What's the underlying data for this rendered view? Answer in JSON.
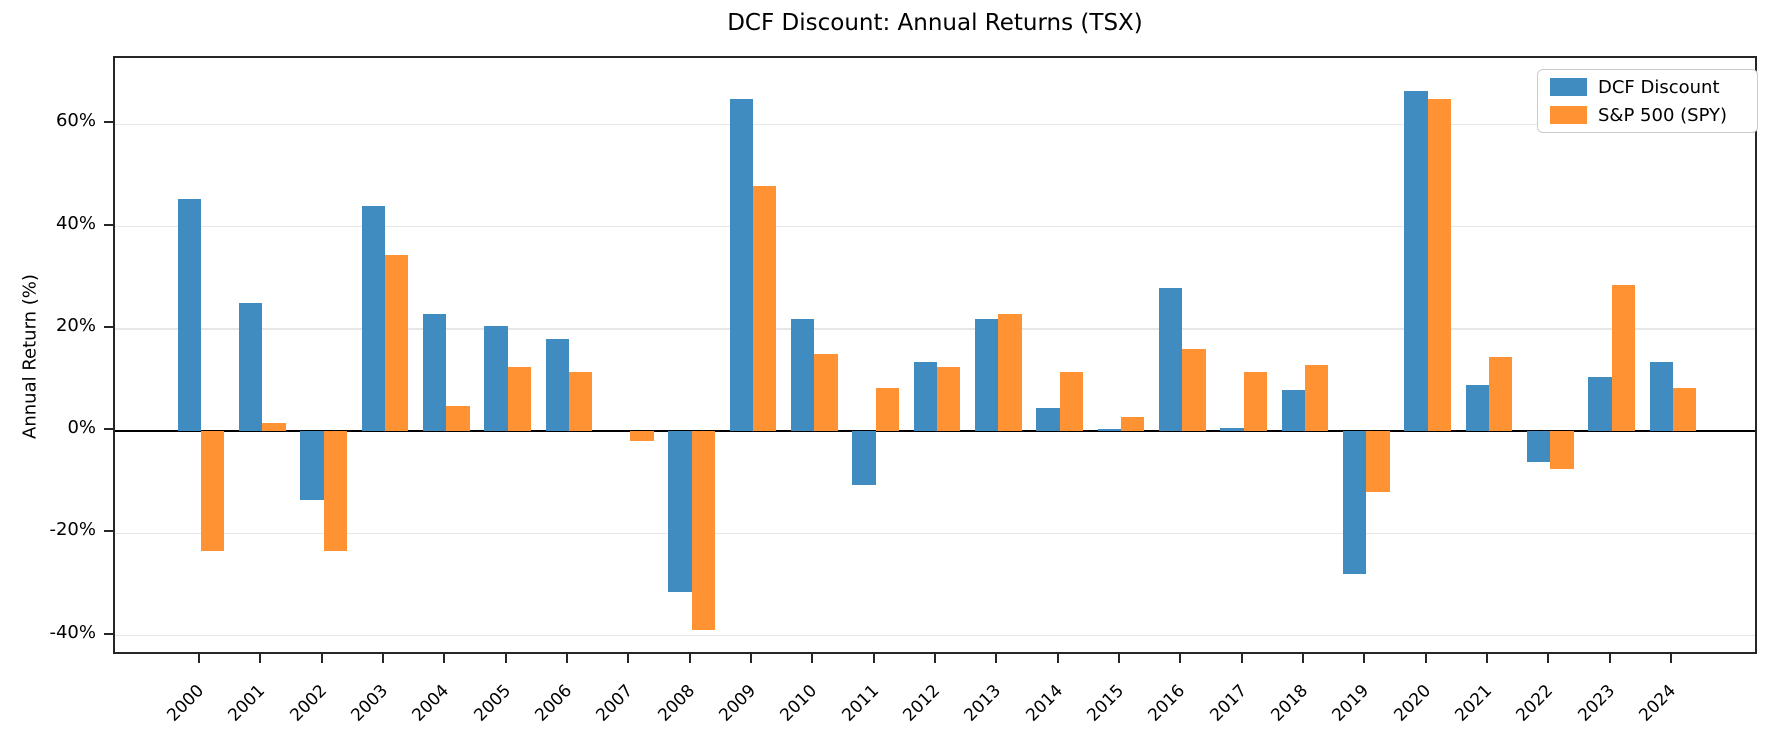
{
  "title": "DCF Discount: Annual Returns (TSX)",
  "axes": {
    "ylabel": "Annual Return (%)",
    "ytick_values": [
      60,
      40,
      20,
      0,
      -20,
      -40
    ],
    "ytick_labels": [
      "60%",
      "40%",
      "20%",
      "0%",
      "-20%",
      "-40%"
    ],
    "ylim": [
      -44,
      73
    ],
    "grid": "horizontal",
    "legend_position": "upper right"
  },
  "colors": {
    "dcf_blue": "#408bbf",
    "spy_orange": "#ff9232",
    "gridline": "#e7e7e7",
    "spine": "#262626",
    "zero_line": "#000000"
  },
  "chart_data": {
    "type": "bar",
    "title": "DCF Discount: Annual Returns (TSX)",
    "xlabel": "",
    "ylabel": "Annual Return (%)",
    "categories": [
      "2000",
      "2001",
      "2002",
      "2003",
      "2004",
      "2005",
      "2006",
      "2007",
      "2008",
      "2009",
      "2010",
      "2011",
      "2012",
      "2013",
      "2014",
      "2015",
      "2016",
      "2017",
      "2018",
      "2019",
      "2020",
      "2021",
      "2022",
      "2023",
      "2024"
    ],
    "series": [
      {
        "name": "DCF Discount",
        "color": "#408bbf",
        "values": [
          45.5,
          25,
          -13.5,
          44,
          23,
          20.5,
          18,
          0,
          -31.5,
          65,
          22,
          -10.5,
          13.5,
          22,
          4.5,
          0.4,
          28,
          0.7,
          8,
          -28,
          66.5,
          9,
          -6,
          10.5,
          13.5
        ]
      },
      {
        "name": "S&P 500 (SPY)",
        "color": "#ff9232",
        "values": [
          -23.5,
          1.5,
          -23.5,
          34.5,
          5,
          12.5,
          11.5,
          -2,
          -39,
          48,
          15,
          8.5,
          12.5,
          23,
          11.5,
          2.7,
          16,
          11.5,
          13,
          -12,
          65,
          14.5,
          -7.5,
          28.5,
          8.5
        ]
      }
    ],
    "ylim": [
      -44,
      73
    ],
    "yticks": [
      60,
      40,
      20,
      0,
      -20,
      -40
    ],
    "grid": "horizontal",
    "legend_position": "upper right"
  }
}
